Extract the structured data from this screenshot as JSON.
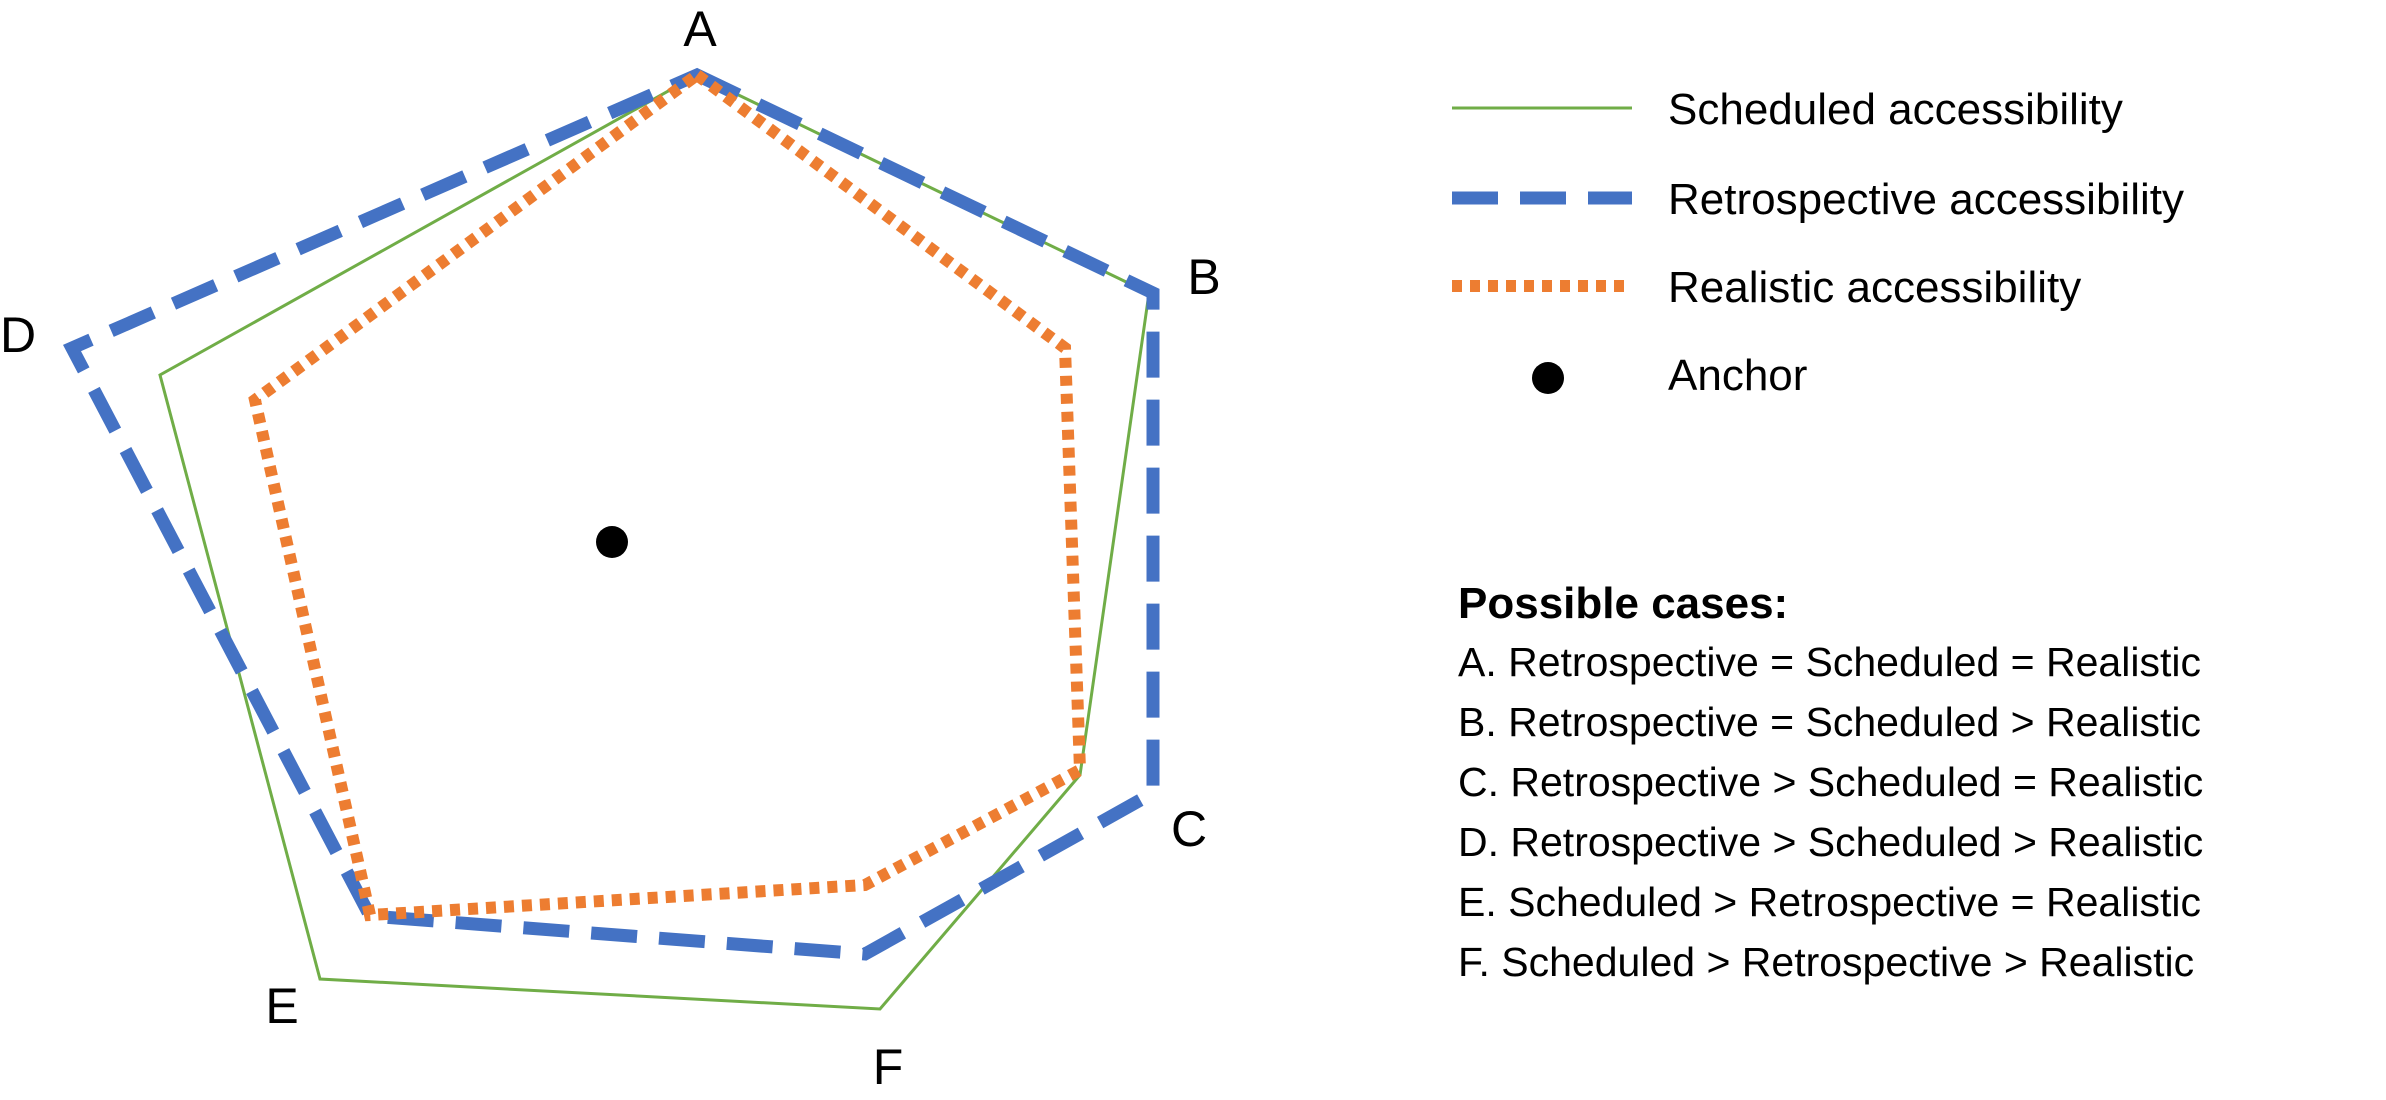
{
  "vertices": {
    "A": "A",
    "B": "B",
    "C": "C",
    "D": "D",
    "E": "E",
    "F": "F"
  },
  "legend": {
    "scheduled": {
      "label": "Scheduled accessibility",
      "color": "#70ad47"
    },
    "retrospective": {
      "label": "Retrospective accessibility",
      "color": "#4472c4"
    },
    "realistic": {
      "label": "Realistic accessibility",
      "color": "#ed7d31"
    },
    "anchor": {
      "label": "Anchor",
      "color": "#000000"
    }
  },
  "cases": {
    "title": "Possible cases:",
    "items": [
      "A. Retrospective = Scheduled = Realistic",
      "B. Retrospective = Scheduled > Realistic",
      "C. Retrospective > Scheduled = Realistic",
      "D. Retrospective > Scheduled > Realistic",
      "E. Scheduled > Retrospective = Realistic",
      "F.  Scheduled > Retrospective > Realistic"
    ]
  }
}
